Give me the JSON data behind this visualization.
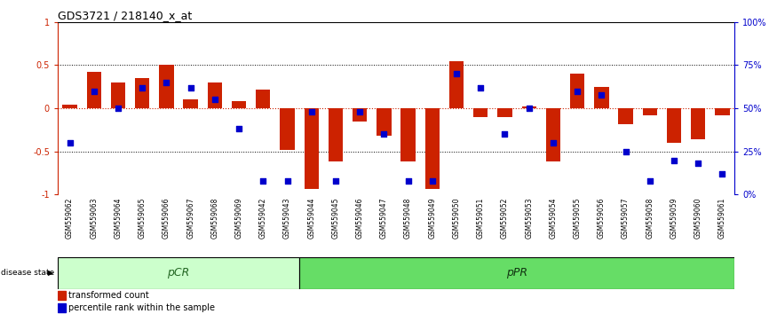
{
  "title": "GDS3721 / 218140_x_at",
  "samples": [
    "GSM559062",
    "GSM559063",
    "GSM559064",
    "GSM559065",
    "GSM559066",
    "GSM559067",
    "GSM559068",
    "GSM559069",
    "GSM559042",
    "GSM559043",
    "GSM559044",
    "GSM559045",
    "GSM559046",
    "GSM559047",
    "GSM559048",
    "GSM559049",
    "GSM559050",
    "GSM559051",
    "GSM559052",
    "GSM559053",
    "GSM559054",
    "GSM559055",
    "GSM559056",
    "GSM559057",
    "GSM559058",
    "GSM559059",
    "GSM559060",
    "GSM559061"
  ],
  "bar_values": [
    0.04,
    0.42,
    0.3,
    0.35,
    0.5,
    0.1,
    0.3,
    0.08,
    0.22,
    -0.48,
    -0.93,
    -0.62,
    -0.15,
    -0.32,
    -0.62,
    -0.93,
    0.55,
    -0.1,
    -0.1,
    0.02,
    -0.62,
    0.4,
    0.25,
    -0.18,
    -0.08,
    -0.4,
    -0.36,
    -0.08
  ],
  "percentile_values": [
    30,
    60,
    50,
    62,
    65,
    62,
    55,
    38,
    8,
    8,
    48,
    8,
    48,
    35,
    8,
    8,
    70,
    62,
    35,
    50,
    30,
    60,
    58,
    25,
    8,
    20,
    18,
    12
  ],
  "bar_color": "#cc2200",
  "dot_color": "#0000cc",
  "zero_line_color": "#cc2200",
  "pcr_count": 10,
  "pcr_color": "#ccffcc",
  "ppr_color": "#66dd66",
  "pcr_label": "pCR",
  "ppr_label": "pPR",
  "disease_state_label": "disease state",
  "legend_bar_label": "transformed count",
  "legend_dot_label": "percentile rank within the sample",
  "ylim": [
    -1,
    1
  ],
  "y_left_ticks": [
    -1,
    -0.5,
    0,
    0.5,
    1
  ],
  "y_left_labels": [
    "-1",
    "-0.5",
    "0",
    "0.5",
    "1"
  ],
  "y_right_ticks": [
    0,
    25,
    50,
    75,
    100
  ],
  "y_right_labels": [
    "0%",
    "25%",
    "50%",
    "75%",
    "100%"
  ]
}
